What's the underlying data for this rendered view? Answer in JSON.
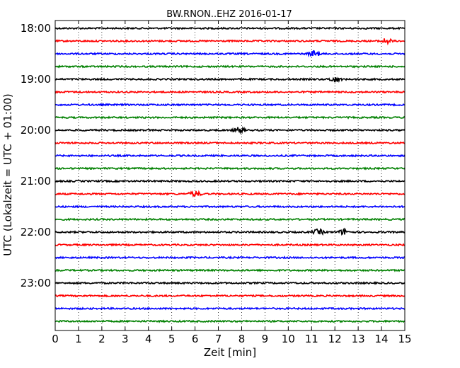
{
  "chart_data": {
    "type": "line",
    "title": "BW.RNON..EHZ 2016-01-17",
    "xlabel": "Zeit  [min]",
    "ylabel": "UTC (Lokalzeit = UTC + 01:00)",
    "xlim": [
      0,
      15
    ],
    "x_ticks": [
      0,
      1,
      2,
      3,
      4,
      5,
      6,
      7,
      8,
      9,
      10,
      11,
      12,
      13,
      14,
      15
    ],
    "x_tick_labels": [
      "0",
      "1",
      "2",
      "3",
      "4",
      "5",
      "6",
      "7",
      "8",
      "9",
      "10",
      "11",
      "12",
      "13",
      "14",
      "15"
    ],
    "y_tick_labels": [
      "18:00",
      "19:00",
      "20:00",
      "21:00",
      "22:00",
      "23:00"
    ],
    "trace_start_times": [
      "18:00",
      "18:15",
      "18:30",
      "18:45",
      "19:00",
      "19:15",
      "19:30",
      "19:45",
      "20:00",
      "20:15",
      "20:30",
      "20:45",
      "21:00",
      "21:15",
      "21:30",
      "21:45",
      "22:00",
      "22:15",
      "22:30",
      "22:45",
      "23:00",
      "23:15",
      "23:30",
      "23:45"
    ],
    "trace_colors": [
      "#000000",
      "#ff0000",
      "#0000ff",
      "#008000"
    ],
    "grid": {
      "vertical": true,
      "style": "dotted"
    },
    "events": [
      {
        "trace": "18:15",
        "minute": 14.2
      },
      {
        "trace": "18:30",
        "minute": 11.1
      },
      {
        "trace": "19:00",
        "minute": 12.0
      },
      {
        "trace": "20:00",
        "minute": 7.9
      },
      {
        "trace": "21:15",
        "minute": 6.0
      },
      {
        "trace": "22:00",
        "minute": 11.3
      },
      {
        "trace": "22:00",
        "minute": 12.4
      }
    ]
  }
}
